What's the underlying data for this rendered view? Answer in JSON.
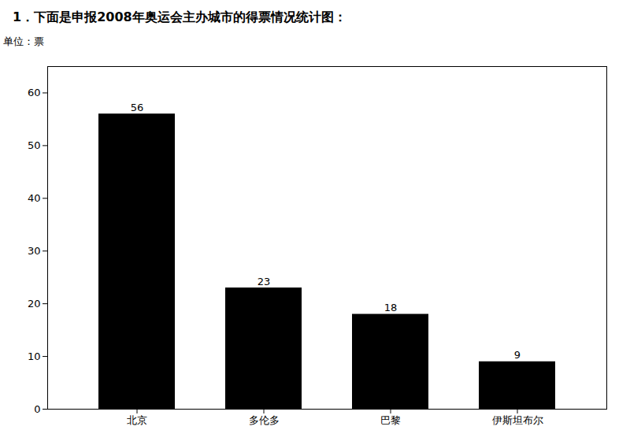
{
  "chart_data": {
    "type": "bar",
    "title": "1．下面是申报2008年奥运会主办城市的得票情况统计图：",
    "ylabel": "单位：票",
    "categories": [
      "北京",
      "多伦多",
      "巴黎",
      "伊斯坦布尔"
    ],
    "values": [
      56,
      23,
      18,
      9
    ],
    "ylim": [
      0,
      65
    ],
    "yticks": [
      0,
      10,
      20,
      30,
      40,
      50,
      60
    ],
    "data_labels": true,
    "grid": false
  }
}
